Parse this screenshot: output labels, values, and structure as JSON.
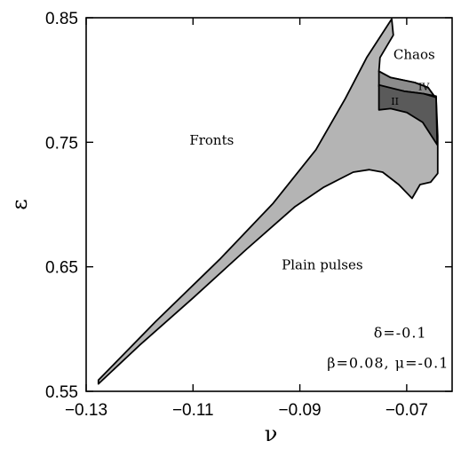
{
  "chart_data": {
    "type": "area",
    "title": "",
    "xlabel": "ν",
    "ylabel": "ε",
    "xlim": [
      -0.13,
      -0.0615
    ],
    "ylim": [
      0.55,
      0.85
    ],
    "xticks": [
      -0.13,
      -0.11,
      -0.09,
      -0.07
    ],
    "xtick_labels": [
      "−0.13",
      "−0.11",
      "−0.09",
      "−0.07"
    ],
    "yticks": [
      0.55,
      0.65,
      0.75,
      0.85
    ],
    "ytick_labels": [
      "0.55",
      "0.65",
      "0.75",
      "0.85"
    ],
    "grid": false,
    "colors": {
      "pulse_region": "#b4b4b4",
      "region_II": "#5a5a5a",
      "region_IV": "#8c8c8c",
      "outline": "#000000"
    },
    "regions": [
      {
        "name": "pulse_region",
        "points": [
          [
            -0.1277,
            0.559
          ],
          [
            -0.117,
            0.606
          ],
          [
            -0.105,
            0.656
          ],
          [
            -0.095,
            0.701
          ],
          [
            -0.087,
            0.744
          ],
          [
            -0.0815,
            0.785
          ],
          [
            -0.0775,
            0.818
          ],
          [
            -0.0728,
            0.849
          ],
          [
            -0.0725,
            0.836
          ],
          [
            -0.075,
            0.818
          ],
          [
            -0.0752,
            0.807
          ],
          [
            -0.073,
            0.802
          ],
          [
            -0.0685,
            0.798
          ],
          [
            -0.066,
            0.794
          ],
          [
            -0.0645,
            0.785
          ],
          [
            -0.0642,
            0.755
          ],
          [
            -0.0642,
            0.725
          ],
          [
            -0.0655,
            0.718
          ],
          [
            -0.0675,
            0.716
          ],
          [
            -0.069,
            0.705
          ],
          [
            -0.0715,
            0.716
          ],
          [
            -0.0745,
            0.726
          ],
          [
            -0.077,
            0.728
          ],
          [
            -0.08,
            0.726
          ],
          [
            -0.0855,
            0.714
          ],
          [
            -0.091,
            0.698
          ],
          [
            -0.1,
            0.664
          ],
          [
            -0.11,
            0.625
          ],
          [
            -0.12,
            0.587
          ],
          [
            -0.1277,
            0.556
          ]
        ]
      },
      {
        "name": "region_IV",
        "points": [
          [
            -0.0752,
            0.807
          ],
          [
            -0.073,
            0.802
          ],
          [
            -0.0685,
            0.798
          ],
          [
            -0.066,
            0.794
          ],
          [
            -0.0645,
            0.785
          ],
          [
            -0.0645,
            0.787
          ],
          [
            -0.0668,
            0.789
          ],
          [
            -0.0705,
            0.791
          ],
          [
            -0.0752,
            0.795
          ]
        ]
      },
      {
        "name": "region_II",
        "points": [
          [
            -0.0752,
            0.796
          ],
          [
            -0.0705,
            0.791
          ],
          [
            -0.0668,
            0.789
          ],
          [
            -0.0645,
            0.786
          ],
          [
            -0.0643,
            0.748
          ],
          [
            -0.067,
            0.766
          ],
          [
            -0.07,
            0.774
          ],
          [
            -0.073,
            0.777
          ],
          [
            -0.0752,
            0.776
          ]
        ]
      }
    ],
    "annotations": [
      {
        "text": "Fronts",
        "x": -0.1065,
        "y": 0.748,
        "style": "region"
      },
      {
        "text": "Chaos",
        "x": -0.0686,
        "y": 0.817,
        "style": "region"
      },
      {
        "text": "IV",
        "x": -0.0668,
        "y": 0.792,
        "style": "small"
      },
      {
        "text": "II",
        "x": -0.0722,
        "y": 0.78,
        "style": "small"
      },
      {
        "text": "Plain pulses",
        "x": -0.0858,
        "y": 0.648,
        "style": "region"
      },
      {
        "text": "δ=-0.1",
        "x": -0.0712,
        "y": 0.593,
        "style": "param"
      },
      {
        "text": "β=0.08,  μ=-0.1",
        "x": -0.0735,
        "y": 0.569,
        "style": "param"
      }
    ]
  }
}
